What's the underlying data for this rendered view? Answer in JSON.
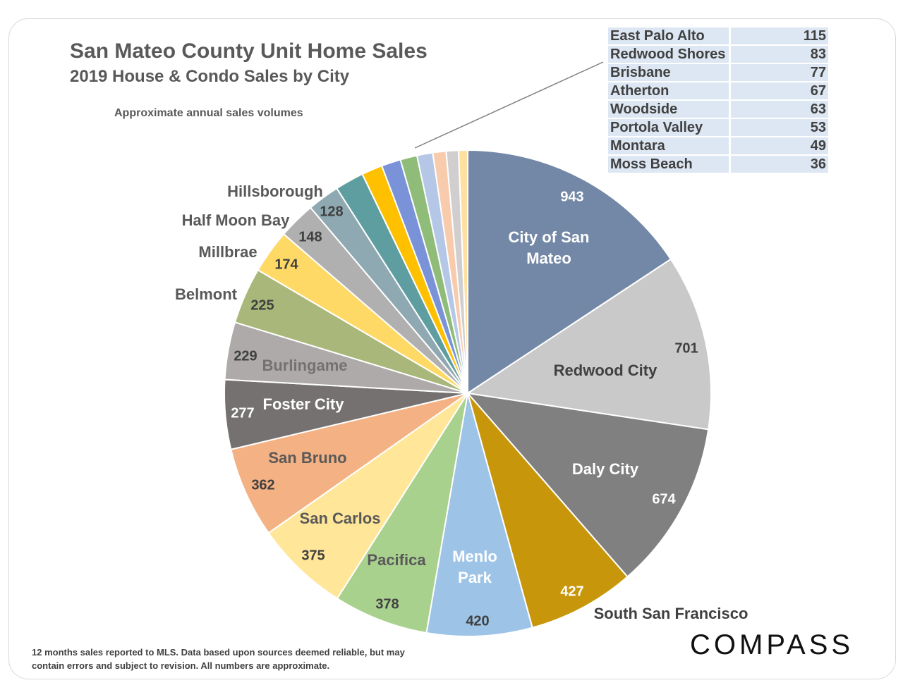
{
  "title": "San Mateo County Unit Home Sales",
  "subtitle": "2019 House & Condo Sales by City",
  "note": "Approximate annual sales volumes",
  "footer": "12 months sales reported to MLS. Data based upon sources deemed reliable, but may contain errors and subject to revision. All numbers are approximate.",
  "logo": "COMPASS",
  "chart_data": {
    "type": "pie",
    "categories": [
      "City of San Mateo",
      "Redwood City",
      "Daly City",
      "South San Francisco",
      "Menlo Park",
      "Pacifica",
      "San Carlos",
      "San Bruno",
      "Foster City",
      "Burlingame",
      "Belmont",
      "Millbrae",
      "Half Moon Bay",
      "Hillsborough",
      "East Palo Alto",
      "Redwood Shores",
      "Brisbane",
      "Atherton",
      "Woodside",
      "Portola Valley",
      "Montara",
      "Moss Beach"
    ],
    "values": [
      943,
      701,
      674,
      427,
      420,
      378,
      375,
      362,
      277,
      229,
      225,
      174,
      148,
      128,
      115,
      83,
      77,
      67,
      63,
      53,
      49,
      36
    ],
    "colors": [
      "#7388a7",
      "#c9c9c9",
      "#808080",
      "#c8960a",
      "#9dc3e6",
      "#a9d18e",
      "#ffe699",
      "#f4b183",
      "#757171",
      "#aeaaaa",
      "#a9b77a",
      "#ffd966",
      "#b0b0b0",
      "#8fa9b2",
      "#5f9ea0",
      "#ffc000",
      "#7a92d8",
      "#8fbc78",
      "#b4c7e7",
      "#f8cbad",
      "#d0cece",
      "#ffe0a0"
    ],
    "small_slices_table": [
      {
        "name": "East Palo Alto",
        "value": "115"
      },
      {
        "name": "Redwood Shores",
        "value": "83"
      },
      {
        "name": "Brisbane",
        "value": "77"
      },
      {
        "name": "Atherton",
        "value": "67"
      },
      {
        "name": "Woodside",
        "value": "63"
      },
      {
        "name": "Portola Valley",
        "value": "53"
      },
      {
        "name": "Montara",
        "value": "49"
      },
      {
        "name": "Moss Beach",
        "value": "36"
      }
    ],
    "slice_labels": [
      {
        "name": "City of San Mateo",
        "lines": [
          "City of San",
          "Mateo"
        ],
        "value": "943"
      },
      {
        "name": "Redwood City",
        "lines": [
          "Redwood City"
        ],
        "value": "701"
      },
      {
        "name": "Daly City",
        "lines": [
          "Daly City"
        ],
        "value": "674"
      },
      {
        "name": "South San Francisco",
        "lines": [
          "South San Francisco"
        ],
        "value": "427"
      },
      {
        "name": "Menlo Park",
        "lines": [
          "Menlo",
          "Park"
        ],
        "value": "420"
      },
      {
        "name": "Pacifica",
        "lines": [
          "Pacifica"
        ],
        "value": "378"
      },
      {
        "name": "San Carlos",
        "lines": [
          "San Carlos"
        ],
        "value": "375"
      },
      {
        "name": "San Bruno",
        "lines": [
          "San Bruno"
        ],
        "value": "362"
      },
      {
        "name": "Foster City",
        "lines": [
          "Foster City"
        ],
        "value": "277"
      },
      {
        "name": "Burlingame",
        "lines": [
          "Burlingame"
        ],
        "value": "229"
      },
      {
        "name": "Belmont",
        "lines": [
          "Belmont"
        ],
        "value": "225"
      },
      {
        "name": "Millbrae",
        "lines": [
          "Millbrae"
        ],
        "value": "174"
      },
      {
        "name": "Half Moon Bay",
        "lines": [
          "Half Moon Bay"
        ],
        "value": "148"
      },
      {
        "name": "Hillsborough",
        "lines": [
          "Hillsborough"
        ],
        "value": "128"
      }
    ]
  }
}
